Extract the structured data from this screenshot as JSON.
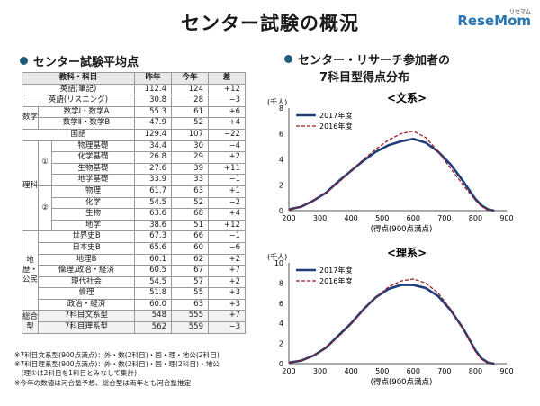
{
  "header": {
    "title": "センター試験の概況",
    "logo": "ReseMom",
    "logo_mark": "リセマム"
  },
  "left": {
    "section_title": "センター試験平均点"
  },
  "right": {
    "section_title_1": "センター・リサーチ参加者の",
    "section_title_2": "7科目型得点分布"
  },
  "table": {
    "columns": [
      "教科・科目",
      "昨年",
      "今年",
      "差"
    ],
    "rows": [
      {
        "subject": "英語(筆記)",
        "last": "112.4",
        "this": "124",
        "diff": "+12"
      },
      {
        "subject": "英語(リスニング)",
        "last": "30.8",
        "this": "28",
        "diff": "−3"
      },
      {
        "subject": "数学Ⅰ・数学A",
        "last": "55.3",
        "this": "61",
        "diff": "+6"
      },
      {
        "subject": "数学Ⅱ・数学B",
        "last": "47.9",
        "this": "52",
        "diff": "+4"
      },
      {
        "subject": "国語",
        "last": "129.4",
        "this": "107",
        "diff": "−22"
      },
      {
        "subject": "物理基礎",
        "last": "34.4",
        "this": "30",
        "diff": "−4"
      },
      {
        "subject": "化学基礎",
        "last": "26.8",
        "this": "29",
        "diff": "+2"
      },
      {
        "subject": "生物基礎",
        "last": "27.6",
        "this": "39",
        "diff": "+11"
      },
      {
        "subject": "地学基礎",
        "last": "33.9",
        "this": "33",
        "diff": "−1"
      },
      {
        "subject": "物理",
        "last": "61.7",
        "this": "63",
        "diff": "+1"
      },
      {
        "subject": "化学",
        "last": "54.5",
        "this": "52",
        "diff": "−2"
      },
      {
        "subject": "生物",
        "last": "63.6",
        "this": "68",
        "diff": "+4"
      },
      {
        "subject": "地学",
        "last": "38.6",
        "this": "51",
        "diff": "+12"
      },
      {
        "subject": "世界史B",
        "last": "67.3",
        "this": "66",
        "diff": "−1"
      },
      {
        "subject": "日本史B",
        "last": "65.6",
        "this": "60",
        "diff": "−6"
      },
      {
        "subject": "地理B",
        "last": "60.1",
        "this": "62",
        "diff": "+2"
      },
      {
        "subject": "倫理,政治・経済",
        "last": "60.5",
        "this": "67",
        "diff": "+7"
      },
      {
        "subject": "現代社会",
        "last": "54.5",
        "this": "57",
        "diff": "+2"
      },
      {
        "subject": "倫理",
        "last": "51.8",
        "this": "55",
        "diff": "+3"
      },
      {
        "subject": "政治・経済",
        "last": "60.0",
        "this": "63",
        "diff": "+3"
      },
      {
        "subject": "7科目文系型",
        "last": "548",
        "this": "555",
        "diff": "+7"
      },
      {
        "subject": "7科目理系型",
        "last": "562",
        "this": "559",
        "diff": "−3"
      }
    ],
    "groups": {
      "math": "数学",
      "science": "理科",
      "science_sub1": "①",
      "science_sub2": "②",
      "social": "地歴・公民",
      "total": "総合型"
    }
  },
  "notes": [
    "※7科目文系型(900点満点)：外・数(2科目)・国・理・地公(2科目)",
    "※7科目理系型(900点満点)：外・数(2科目)・国・理(2科目)・地公",
    "　(理①は2科目を1科目とみなして集計)",
    "※今年の数値は河合塾予想、総合型は両年とも河合塾推定"
  ],
  "colors": {
    "series_2017": "#1f3f7a",
    "series_2016": "#9a1f26",
    "bullet": "#1f5c7a"
  },
  "chart_data": [
    {
      "type": "line",
      "title": "<文系>",
      "ylabel": "(千人)",
      "xlabel": "(得点(900点満点)",
      "xlim": [
        200,
        900
      ],
      "ylim": [
        0,
        8
      ],
      "xticks": [
        200,
        300,
        400,
        500,
        600,
        700,
        800,
        900
      ],
      "yticks": [
        0,
        2,
        4,
        6,
        8
      ],
      "legend": "top-left",
      "series": [
        {
          "name": "2017年度",
          "style": "solid",
          "x": [
            200,
            240,
            280,
            320,
            360,
            400,
            440,
            480,
            520,
            560,
            600,
            640,
            680,
            720,
            760,
            800,
            820,
            840,
            860
          ],
          "y": [
            0.1,
            0.3,
            0.8,
            1.4,
            2.3,
            3.1,
            3.9,
            4.6,
            5.1,
            5.4,
            5.6,
            5.3,
            4.6,
            3.6,
            2.3,
            0.9,
            0.4,
            0.1,
            0.0
          ]
        },
        {
          "name": "2016年度",
          "style": "dashed",
          "x": [
            200,
            240,
            280,
            320,
            360,
            400,
            440,
            480,
            520,
            560,
            600,
            640,
            680,
            720,
            760,
            800,
            820,
            840,
            860
          ],
          "y": [
            0.1,
            0.3,
            0.8,
            1.4,
            2.2,
            3.1,
            4.0,
            4.8,
            5.5,
            6.0,
            6.2,
            5.7,
            4.6,
            3.3,
            2.0,
            0.8,
            0.3,
            0.1,
            0.0
          ]
        }
      ]
    },
    {
      "type": "line",
      "title": "<理系>",
      "ylabel": "(千人)",
      "xlabel": "(得点(900点満点)",
      "xlim": [
        200,
        900
      ],
      "ylim": [
        0,
        10
      ],
      "xticks": [
        200,
        300,
        400,
        500,
        600,
        700,
        800,
        900
      ],
      "yticks": [
        0,
        2,
        4,
        6,
        8,
        10
      ],
      "legend": "top-left",
      "series": [
        {
          "name": "2017年度",
          "style": "solid",
          "x": [
            200,
            240,
            280,
            320,
            360,
            400,
            440,
            480,
            520,
            560,
            600,
            640,
            680,
            720,
            760,
            800,
            820,
            840,
            860
          ],
          "y": [
            0.1,
            0.3,
            0.8,
            1.6,
            2.8,
            4.0,
            5.4,
            6.6,
            7.4,
            7.8,
            7.8,
            7.5,
            6.7,
            5.3,
            3.5,
            1.3,
            0.5,
            0.1,
            0.0
          ]
        },
        {
          "name": "2016年度",
          "style": "dashed",
          "x": [
            200,
            240,
            280,
            320,
            360,
            400,
            440,
            480,
            520,
            560,
            600,
            640,
            680,
            720,
            760,
            800,
            820,
            840,
            860
          ],
          "y": [
            0.1,
            0.3,
            0.8,
            1.6,
            2.7,
            3.9,
            5.3,
            6.6,
            7.6,
            8.2,
            8.4,
            8.0,
            7.0,
            5.4,
            3.4,
            1.2,
            0.4,
            0.1,
            0.0
          ]
        }
      ]
    }
  ]
}
